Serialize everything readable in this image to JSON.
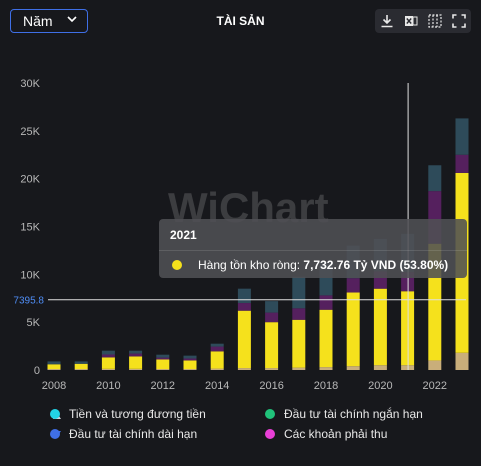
{
  "header": {
    "period_label": "Năm",
    "title": "TÀI SẢN",
    "tools": [
      "download-icon",
      "excel-icon",
      "chart-type-icon",
      "fullscreen-icon"
    ]
  },
  "watermark": "WiChart",
  "crosshair": {
    "y_label": "7395.8",
    "y_value": 7395.8,
    "x_year": 2021
  },
  "tooltip": {
    "year": "2021",
    "label": "Hàng tồn kho ròng:",
    "value": "7,732.76 Tỷ VND (53.80%)",
    "color": "#f5e11c"
  },
  "legend": {
    "items": [
      {
        "label": "Tiền và tương đương tiền",
        "color": "#22d3e6"
      },
      {
        "label": "Đầu tư tài chính ngắn hạn",
        "color": "#20c27a"
      },
      {
        "label": "Đầu tư tài chính dài hạn",
        "color": "#3f6fe6"
      },
      {
        "label": "Các khoản phải thu",
        "color": "#e83fd6"
      }
    ]
  },
  "chart_data": {
    "type": "bar",
    "stacked": true,
    "categories": [
      "2008",
      "2009",
      "2010",
      "2011",
      "2012",
      "2013",
      "2014",
      "2015",
      "2016",
      "2017",
      "2018",
      "2019",
      "2020",
      "2021",
      "2022",
      "2023"
    ],
    "x_tick_labels": [
      "2008",
      "2010",
      "2012",
      "2014",
      "2016",
      "2018",
      "2020",
      "2022"
    ],
    "y_tick_labels": [
      "0",
      "5K",
      "10K",
      "15K",
      "20K",
      "25K",
      "30K"
    ],
    "ylim": [
      0,
      30000
    ],
    "grid": false,
    "legend_position": "bottom",
    "series": [
      {
        "name": "",
        "color": "#c9ae7a",
        "values": [
          100,
          100,
          120,
          120,
          100,
          100,
          150,
          200,
          200,
          250,
          300,
          400,
          500,
          500,
          1000,
          1800
        ]
      },
      {
        "name": "Hàng tồn kho ròng",
        "color": "#f5e11c",
        "values": [
          500,
          550,
          1200,
          1300,
          1000,
          900,
          1800,
          6000,
          4800,
          5000,
          6000,
          7700,
          8000,
          7732.76,
          12200,
          18800
        ]
      },
      {
        "name": "",
        "color": "#55205e",
        "values": [
          0,
          0,
          300,
          300,
          200,
          200,
          500,
          800,
          1000,
          1200,
          1500,
          1500,
          1800,
          2000,
          5500,
          1900
        ]
      },
      {
        "name": "",
        "color": "#2e4b5a",
        "values": [
          300,
          250,
          400,
          300,
          300,
          300,
          300,
          1500,
          1200,
          3300,
          3500,
          3400,
          3400,
          4000,
          2700,
          3800
        ]
      }
    ]
  }
}
